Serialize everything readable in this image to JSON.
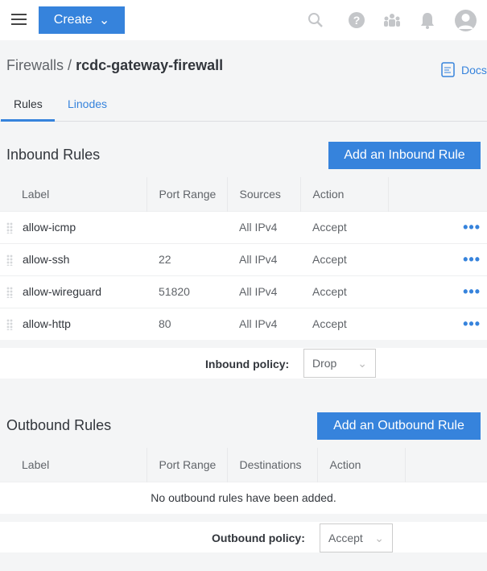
{
  "topbar": {
    "create_label": "Create",
    "icons": [
      "search-icon",
      "help-icon",
      "community-icon",
      "notifications-icon",
      "profile-icon"
    ]
  },
  "breadcrumb": {
    "parent": "Firewalls",
    "separator": "/",
    "current": "rcdc-gateway-firewall"
  },
  "docs_label": "Docs",
  "tabs": [
    {
      "label": "Rules",
      "active": true
    },
    {
      "label": "Linodes",
      "active": false
    }
  ],
  "inbound": {
    "title": "Inbound Rules",
    "add_label": "Add an Inbound Rule",
    "columns": [
      "Label",
      "Port Range",
      "Sources",
      "Action"
    ],
    "rows": [
      {
        "label": "allow-icmp",
        "ports": "",
        "sources": "All IPv4",
        "action": "Accept"
      },
      {
        "label": "allow-ssh",
        "ports": "22",
        "sources": "All IPv4",
        "action": "Accept"
      },
      {
        "label": "allow-wireguard",
        "ports": "51820",
        "sources": "All IPv4",
        "action": "Accept"
      },
      {
        "label": "allow-http",
        "ports": "80",
        "sources": "All IPv4",
        "action": "Accept"
      }
    ],
    "policy_label": "Inbound policy:",
    "policy_value": "Drop"
  },
  "outbound": {
    "title": "Outbound Rules",
    "add_label": "Add an Outbound Rule",
    "columns": [
      "Label",
      "Port Range",
      "Destinations",
      "Action"
    ],
    "empty": "No outbound rules have been added.",
    "policy_label": "Outbound policy:",
    "policy_value": "Accept"
  },
  "colors": {
    "accent": "#3683dc"
  }
}
